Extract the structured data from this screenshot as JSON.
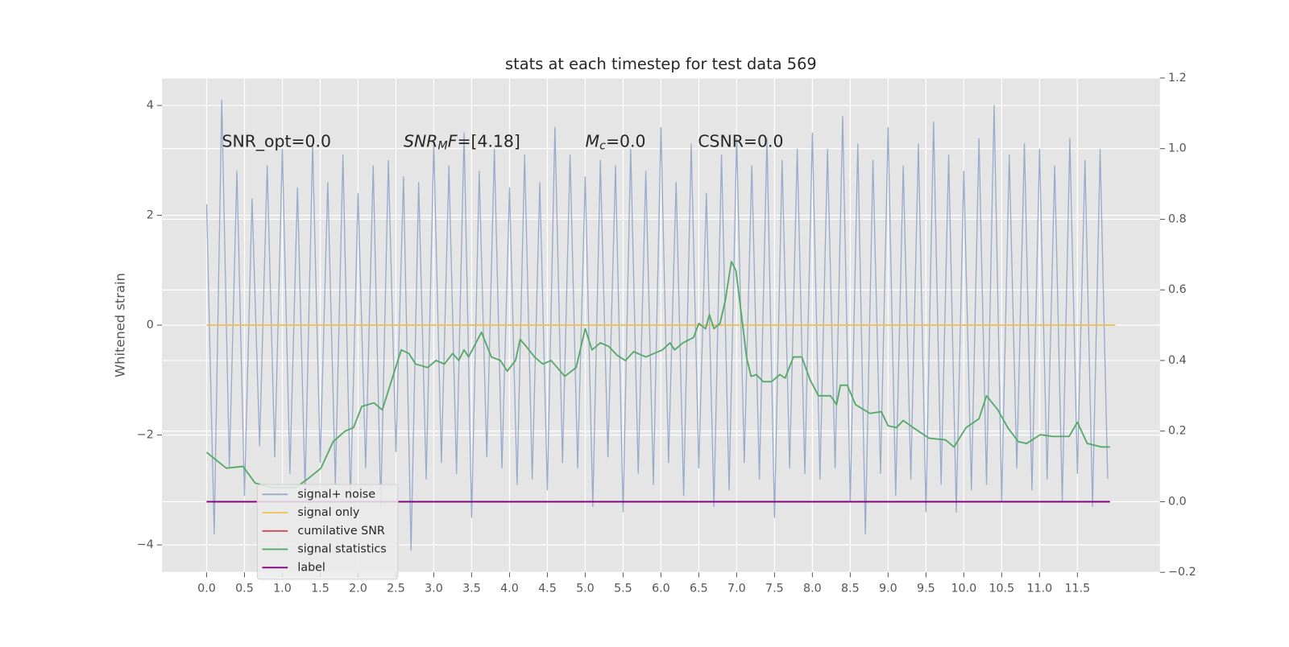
{
  "chart_data": {
    "type": "line",
    "title": "stats at each timestep for test data 569",
    "ylabel": "Whitened strain",
    "xlim": [
      -0.59,
      12.59
    ],
    "ylim": [
      -4.5,
      4.5
    ],
    "y2lim": [
      -0.2,
      1.2
    ],
    "xticks": [
      {
        "value": 0,
        "label": "0.0"
      },
      0.5,
      {
        "value": 1,
        "label": "1.0"
      },
      1.5,
      {
        "value": 2,
        "label": "2.0"
      },
      2.5,
      {
        "value": 3,
        "label": "3.0"
      },
      3.5,
      {
        "value": 4,
        "label": "4.0"
      },
      4.5,
      {
        "value": 5,
        "label": "5.0"
      },
      5.5,
      {
        "value": 6,
        "label": "6.0"
      },
      6.5,
      {
        "value": 7,
        "label": "7.0"
      },
      7.5,
      {
        "value": 8,
        "label": "8.0"
      },
      8.5,
      {
        "value": 9,
        "label": "9.0"
      },
      9.5,
      {
        "value": 10,
        "label": "10.0"
      },
      10.5,
      {
        "value": 11,
        "label": "11.0"
      },
      11.5
    ],
    "yticks": [
      {
        "value": -4,
        "label": "−4"
      },
      {
        "value": -2,
        "label": "−2"
      },
      0,
      2,
      4
    ],
    "y2ticks": [
      {
        "value": -0.2,
        "label": "−0.2"
      },
      {
        "value": 0,
        "label": "0.0"
      },
      0.2,
      0.4,
      0.6,
      0.8,
      {
        "value": 1,
        "label": "1.0"
      },
      1.2
    ],
    "grid": true,
    "legend": "lower left",
    "annotations": [
      {
        "segments": [
          {
            "text": "SNR_opt=0.0"
          }
        ]
      },
      {
        "segments": [
          {
            "text": "SNR",
            "italic": true
          },
          {
            "text": "M",
            "italic": true,
            "sub": true
          },
          {
            "text": "F",
            "italic": true
          },
          {
            "text": "=[4.18]"
          }
        ]
      },
      {
        "segments": [
          {
            "text": "M",
            "italic": true
          },
          {
            "text": "c",
            "italic": true,
            "sub": true
          },
          {
            "text": "=0.0"
          }
        ]
      },
      {
        "segments": [
          {
            "text": "CSNR=0.0"
          }
        ]
      }
    ],
    "series": [
      {
        "name": "signal+ noise",
        "color": "#97abcd",
        "x": [
          0.0,
          0.1,
          0.2,
          0.3,
          0.4,
          0.5,
          0.6,
          0.7,
          0.8,
          0.9,
          1.0,
          1.1,
          1.2,
          1.3,
          1.4,
          1.5,
          1.6,
          1.7,
          1.8,
          1.9,
          2.0,
          2.1,
          2.2,
          2.3,
          2.4,
          2.5,
          2.6,
          2.7,
          2.8,
          2.9,
          3.0,
          3.1,
          3.2,
          3.3,
          3.4,
          3.5,
          3.6,
          3.7,
          3.8,
          3.9,
          4.0,
          4.1,
          4.2,
          4.3,
          4.4,
          4.5,
          4.6,
          4.7,
          4.8,
          4.9,
          5.0,
          5.1,
          5.2,
          5.3,
          5.4,
          5.5,
          5.6,
          5.7,
          5.8,
          5.9,
          6.0,
          6.1,
          6.2,
          6.3,
          6.4,
          6.5,
          6.6,
          6.7,
          6.8,
          6.9,
          7.0,
          7.1,
          7.2,
          7.3,
          7.4,
          7.5,
          7.6,
          7.7,
          7.8,
          7.9,
          8.0,
          8.1,
          8.2,
          8.3,
          8.4,
          8.5,
          8.6,
          8.7,
          8.8,
          8.9,
          9.0,
          9.1,
          9.2,
          9.3,
          9.4,
          9.5,
          9.6,
          9.7,
          9.8,
          9.9,
          10.0,
          10.1,
          10.2,
          10.3,
          10.4,
          10.5,
          10.6,
          10.7,
          10.8,
          10.9,
          11.0,
          11.1,
          11.2,
          11.3,
          11.4,
          11.5,
          11.6,
          11.7,
          11.8,
          11.9
        ],
        "values": [
          2.2,
          -3.8,
          4.1,
          -2.6,
          2.8,
          -3.1,
          2.3,
          -2.2,
          2.9,
          -2.4,
          3.2,
          -2.7,
          2.5,
          -3.0,
          3.3,
          -2.5,
          2.6,
          -2.9,
          3.1,
          -3.2,
          2.4,
          -2.6,
          2.9,
          -3.3,
          3.0,
          -2.3,
          2.7,
          -4.1,
          2.6,
          -2.8,
          3.3,
          -2.5,
          2.9,
          -2.7,
          3.5,
          -3.5,
          2.8,
          -2.4,
          3.2,
          -2.6,
          2.5,
          -2.9,
          3.1,
          -2.8,
          2.6,
          -3.0,
          3.6,
          -2.5,
          3.1,
          -2.6,
          2.7,
          -3.3,
          3.0,
          -2.4,
          2.9,
          -3.4,
          3.2,
          -2.7,
          2.8,
          -2.9,
          3.6,
          -2.5,
          2.6,
          -3.1,
          3.3,
          -2.6,
          2.4,
          -3.3,
          3.1,
          -3.0,
          3.4,
          -2.5,
          2.9,
          -2.8,
          3.4,
          -3.5,
          3.0,
          -2.6,
          3.2,
          -2.7,
          3.5,
          -2.8,
          3.2,
          -2.6,
          3.8,
          -3.2,
          3.3,
          -3.8,
          3.0,
          -2.7,
          3.6,
          -3.1,
          2.9,
          -2.8,
          3.3,
          -3.4,
          3.7,
          -2.9,
          3.1,
          -3.4,
          2.8,
          -3.0,
          3.4,
          -2.9,
          4.0,
          -3.2,
          3.1,
          -2.6,
          3.3,
          -3.0,
          3.2,
          -2.8,
          2.9,
          -3.2,
          3.4,
          -2.7,
          3.0,
          -3.3,
          3.2,
          -2.8
        ]
      },
      {
        "name": "signal only",
        "color": "#eec15a",
        "x": [
          0,
          12.0
        ],
        "values": [
          0,
          0
        ]
      },
      {
        "name": "cumilative SNR",
        "color": "#c44e52",
        "axis": "y2",
        "x": [
          0,
          11.93
        ],
        "values": [
          0,
          0
        ]
      },
      {
        "name": "signal statistics",
        "color": "#55a868",
        "axis": "y2",
        "x": [
          0.0,
          0.26,
          0.48,
          0.64,
          0.86,
          1.18,
          1.35,
          1.51,
          1.67,
          1.83,
          1.94,
          2.05,
          2.21,
          2.32,
          2.57,
          2.67,
          2.76,
          2.92,
          3.03,
          3.14,
          3.25,
          3.33,
          3.4,
          3.46,
          3.63,
          3.76,
          3.88,
          3.97,
          4.08,
          4.14,
          4.22,
          4.33,
          4.44,
          4.55,
          4.73,
          4.88,
          5.0,
          5.09,
          5.2,
          5.31,
          5.42,
          5.53,
          5.64,
          5.8,
          5.91,
          6.02,
          6.12,
          6.18,
          6.29,
          6.43,
          6.5,
          6.59,
          6.64,
          6.7,
          6.78,
          6.85,
          6.93,
          6.99,
          7.08,
          7.13,
          7.19,
          7.26,
          7.35,
          7.46,
          7.57,
          7.64,
          7.75,
          7.86,
          7.97,
          8.08,
          8.24,
          8.32,
          8.37,
          8.46,
          8.57,
          8.76,
          8.91,
          9.0,
          9.11,
          9.2,
          9.33,
          9.54,
          9.76,
          9.87,
          10.03,
          10.2,
          10.3,
          10.45,
          10.58,
          10.72,
          10.83,
          11.01,
          11.17,
          11.39,
          11.5,
          11.63,
          11.82,
          11.93
        ],
        "values": [
          0.14,
          0.095,
          0.1,
          0.053,
          0.04,
          0.04,
          0.067,
          0.095,
          0.17,
          0.2,
          0.21,
          0.27,
          0.28,
          0.26,
          0.43,
          0.42,
          0.39,
          0.38,
          0.4,
          0.39,
          0.42,
          0.4,
          0.43,
          0.41,
          0.48,
          0.41,
          0.4,
          0.37,
          0.4,
          0.46,
          0.44,
          0.41,
          0.39,
          0.4,
          0.355,
          0.38,
          0.49,
          0.43,
          0.45,
          0.44,
          0.415,
          0.4,
          0.425,
          0.41,
          0.42,
          0.43,
          0.45,
          0.43,
          0.45,
          0.465,
          0.505,
          0.49,
          0.53,
          0.49,
          0.505,
          0.57,
          0.68,
          0.655,
          0.5,
          0.41,
          0.355,
          0.36,
          0.34,
          0.34,
          0.36,
          0.35,
          0.41,
          0.41,
          0.345,
          0.3,
          0.3,
          0.275,
          0.33,
          0.33,
          0.275,
          0.25,
          0.255,
          0.215,
          0.21,
          0.23,
          0.21,
          0.18,
          0.175,
          0.155,
          0.21,
          0.235,
          0.3,
          0.26,
          0.21,
          0.17,
          0.165,
          0.19,
          0.185,
          0.185,
          0.225,
          0.165,
          0.155,
          0.155
        ]
      },
      {
        "name": "label",
        "color": "#800080",
        "axis": "y2",
        "x": [
          0,
          11.93
        ],
        "values": [
          0,
          0
        ]
      }
    ]
  }
}
